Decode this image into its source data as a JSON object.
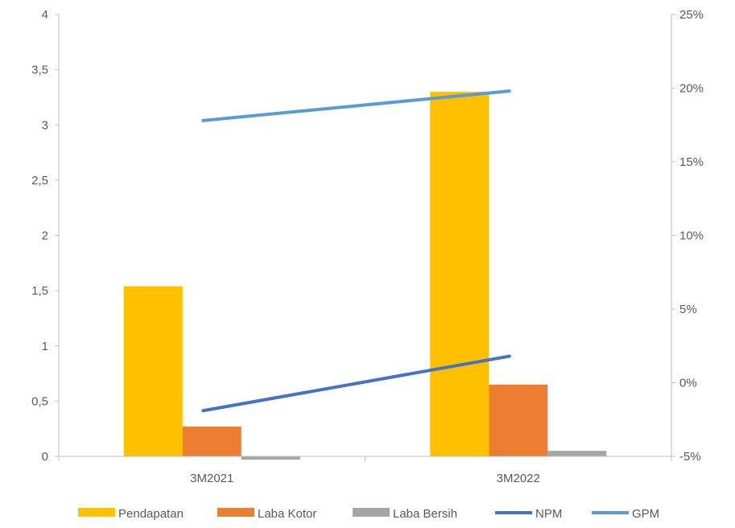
{
  "chart_data": {
    "type": "bar",
    "combo": "bar-line, secondary axis",
    "categories": [
      "3M2021",
      "3M2022"
    ],
    "series": [
      {
        "name": "Pendapatan",
        "type": "bar",
        "axis": "left",
        "color": "#FFC000",
        "values": [
          1.54,
          3.3
        ]
      },
      {
        "name": "Laba Kotor",
        "type": "bar",
        "axis": "left",
        "color": "#ED7D31",
        "values": [
          0.27,
          0.65
        ]
      },
      {
        "name": "Laba Bersih",
        "type": "bar",
        "axis": "left",
        "color": "#A5A5A5",
        "values": [
          -0.03,
          0.05
        ]
      },
      {
        "name": "NPM",
        "type": "line",
        "axis": "right",
        "color": "#4472C4",
        "values": [
          -1.9,
          1.8
        ]
      },
      {
        "name": "GPM",
        "type": "line",
        "axis": "right",
        "color": "#5B9BD5",
        "values": [
          17.8,
          19.8
        ]
      }
    ],
    "y_left": {
      "min": 0,
      "max": 4,
      "ticks": [
        "0",
        "0,5",
        "1",
        "1,5",
        "2",
        "2,5",
        "3",
        "3,5",
        "4"
      ]
    },
    "y_right": {
      "min": -5,
      "max": 25,
      "unit": "%",
      "ticks": [
        "-5%",
        "0%",
        "5%",
        "10%",
        "15%",
        "20%",
        "25%"
      ]
    },
    "grid": false,
    "legend_position": "bottom",
    "title": "",
    "xlabel": "",
    "ylabel": ""
  }
}
